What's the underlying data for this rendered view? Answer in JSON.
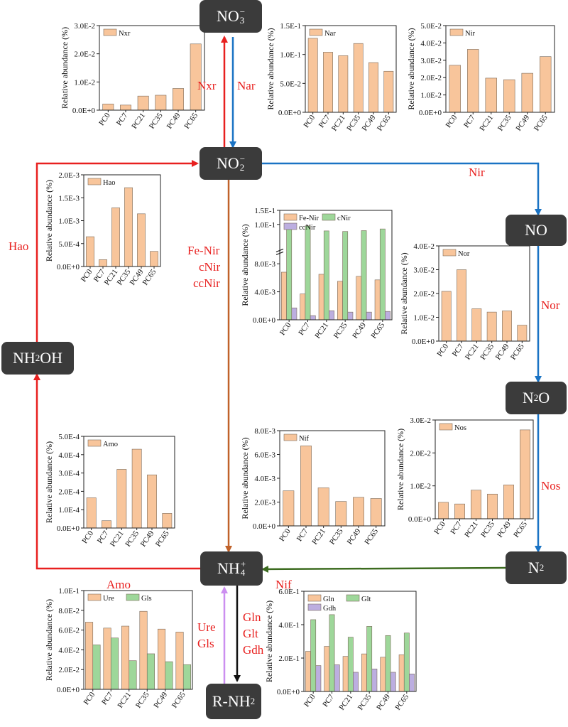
{
  "colors": {
    "red": "#e8201f",
    "blue": "#1a73c4",
    "brown": "#c0622a",
    "green": "#3c6b1f",
    "violet": "#cc8ff0",
    "black": "#111111",
    "orange": "#f8c59b",
    "gfill": "#9ed79a",
    "pfill": "#bcaee0"
  },
  "nodes": {
    "no3": {
      "base": "NO",
      "sub": "3",
      "sup": "−"
    },
    "no2": {
      "base": "NO",
      "sub": "2",
      "sup": "−"
    },
    "no": {
      "base": "NO",
      "sub": "",
      "sup": ""
    },
    "n2o": {
      "base": "N",
      "sub": "2",
      "sup": "",
      "tail": "O"
    },
    "n2": {
      "base": "N",
      "sub": "2",
      "sup": ""
    },
    "nh2oh": {
      "base": "NH",
      "sub": "2",
      "sup": "",
      "tail": "OH"
    },
    "nh4": {
      "base": "NH",
      "sub": "4",
      "sup": "+"
    },
    "rnh2": {
      "base": "R-NH",
      "sub": "2",
      "sup": ""
    }
  },
  "edge_labels": {
    "nxr": "Nxr",
    "nar": "Nar",
    "nir": "Nir",
    "hao": "Hao",
    "ferenir": "Fe-Nir",
    "cnir": "cNir",
    "ccnir": "ccNir",
    "nor": "Nor",
    "nos": "Nos",
    "amo": "Amo",
    "nif": "Nif",
    "ure": "Ure",
    "gls": "Gls",
    "gln": "Gln",
    "glt": "Glt",
    "gdh": "Gdh"
  },
  "chart_data": [
    {
      "id": "nxr",
      "type": "bar",
      "ylabel": "Relative abundance (%)",
      "categories": [
        "PC0",
        "PC7",
        "PC21",
        "PC35",
        "PC49",
        "PC65"
      ],
      "ylim": [
        0,
        0.03
      ],
      "yticks": [
        0,
        0.01,
        0.02,
        0.03
      ],
      "yticklabels": [
        "0.0E+0",
        "1.0E-2",
        "2.0E-2",
        "3.0E-2"
      ],
      "series": [
        {
          "name": "Nxr",
          "values": [
            0.0022,
            0.0018,
            0.005,
            0.0053,
            0.0077,
            0.0235
          ]
        }
      ]
    },
    {
      "id": "nar",
      "type": "bar",
      "ylabel": "Relative abundance (%)",
      "categories": [
        "PC0",
        "PC7",
        "PC21",
        "PC35",
        "PC49",
        "PC65"
      ],
      "ylim": [
        0,
        0.15
      ],
      "yticks": [
        0,
        0.05,
        0.1,
        0.15
      ],
      "yticklabels": [
        "0.0E+0",
        "5.0E-2",
        "1.0E-1",
        "1.5E-1"
      ],
      "series": [
        {
          "name": "Nar",
          "values": [
            0.128,
            0.104,
            0.098,
            0.119,
            0.086,
            0.071
          ]
        }
      ]
    },
    {
      "id": "nir",
      "type": "bar",
      "ylabel": "Relative abundance (%)",
      "categories": [
        "PC0",
        "PC7",
        "PC21",
        "PC35",
        "PC49",
        "PC65"
      ],
      "ylim": [
        0,
        0.05
      ],
      "yticks": [
        0,
        0.01,
        0.02,
        0.03,
        0.04,
        0.05
      ],
      "yticklabels": [
        "0.0E+0",
        "1.0E-2",
        "2.0E-2",
        "3.0E-2",
        "4.0E-2",
        "5.0E-2"
      ],
      "series": [
        {
          "name": "Nir",
          "values": [
            0.0271,
            0.0363,
            0.0197,
            0.0188,
            0.0225,
            0.0321
          ]
        }
      ]
    },
    {
      "id": "hao",
      "type": "bar",
      "ylabel": "Relative abundance (%)",
      "categories": [
        "PC0",
        "PC7",
        "PC21",
        "PC35",
        "PC49",
        "PC65"
      ],
      "ylim": [
        0,
        0.002
      ],
      "yticks": [
        0,
        0.0005,
        0.001,
        0.0015,
        0.002
      ],
      "yticklabels": [
        "0.0E+0",
        "5.0E-4",
        "1.0E-3",
        "1.5E-3",
        "2.0E-3"
      ],
      "series": [
        {
          "name": "Hao",
          "values": [
            0.00065,
            0.00015,
            0.00128,
            0.00172,
            0.00115,
            0.00033
          ]
        }
      ]
    },
    {
      "id": "nirtypes",
      "type": "bar",
      "broken_axis": true,
      "ylabel": "Relative abundance (%)",
      "categories": [
        "PC0",
        "PC7",
        "PC21",
        "PC35",
        "PC49",
        "PC65"
      ],
      "ylim": [
        0,
        0.15
      ],
      "yticks": [
        0,
        0.004,
        0.008,
        0.1,
        0.15
      ],
      "yticklabels": [
        "0.0E+0",
        "4.0E-3",
        "8.0E-3",
        "1.0E-1",
        "1.5E-1"
      ],
      "series": [
        {
          "name": "Fe-Nir",
          "values": [
            0.0068,
            0.0037,
            0.0065,
            0.0055,
            0.0062,
            0.0057
          ]
        },
        {
          "name": "cNir",
          "values": [
            0.084,
            0.095,
            0.077,
            0.075,
            0.078,
            0.084
          ]
        },
        {
          "name": "ccNir",
          "values": [
            0.0017,
            0.0006,
            0.0013,
            0.0011,
            0.0011,
            0.0012
          ]
        }
      ]
    },
    {
      "id": "nor",
      "type": "bar",
      "ylabel": "Relative abundance (%)",
      "categories": [
        "PC0",
        "PC7",
        "PC21",
        "PC35",
        "PC49",
        "PC65"
      ],
      "ylim": [
        0,
        0.04
      ],
      "yticks": [
        0,
        0.01,
        0.02,
        0.03,
        0.04
      ],
      "yticklabels": [
        "0.0E+0",
        "1.0E-2",
        "2.0E-2",
        "3.0E-2",
        "4.0E-2"
      ],
      "series": [
        {
          "name": "Nor",
          "values": [
            0.0209,
            0.03,
            0.0136,
            0.0122,
            0.0127,
            0.0067
          ]
        }
      ]
    },
    {
      "id": "amo",
      "type": "bar",
      "ylabel": "Relative abundance (%)",
      "categories": [
        "PC0",
        "PC7",
        "PC21",
        "PC35",
        "PC49",
        "PC65"
      ],
      "ylim": [
        0,
        0.0005
      ],
      "yticks": [
        0,
        0.0001,
        0.0002,
        0.0003,
        0.0004,
        0.0005
      ],
      "yticklabels": [
        "0.0E+0",
        "1.0E-4",
        "2.0E-4",
        "3.0E-4",
        "4.0E-4",
        "5.0E-4"
      ],
      "series": [
        {
          "name": "Amo",
          "values": [
            0.000165,
            4e-05,
            0.00032,
            0.00043,
            0.00029,
            8e-05
          ]
        }
      ]
    },
    {
      "id": "nif",
      "type": "bar",
      "ylabel": "Relative abundance (%)",
      "categories": [
        "PC0",
        "PC7",
        "PC21",
        "PC35",
        "PC49",
        "PC65"
      ],
      "ylim": [
        0,
        0.008
      ],
      "yticks": [
        0,
        0.002,
        0.004,
        0.006,
        0.008
      ],
      "yticklabels": [
        "0.0E+0",
        "2.0E-3",
        "4.0E-3",
        "6.0E-3",
        "8.0E-3"
      ],
      "series": [
        {
          "name": "Nif",
          "values": [
            0.00295,
            0.00672,
            0.0032,
            0.00205,
            0.0024,
            0.0023
          ]
        }
      ]
    },
    {
      "id": "nos",
      "type": "bar",
      "ylabel": "Relative abundance (%)",
      "categories": [
        "PC0",
        "PC7",
        "PC21",
        "PC35",
        "PC49",
        "PC65"
      ],
      "ylim": [
        0,
        0.03
      ],
      "yticks": [
        0,
        0.01,
        0.02,
        0.03
      ],
      "yticklabels": [
        "0.0E+0",
        "1.0E-2",
        "2.0E-2",
        "3.0E-2"
      ],
      "series": [
        {
          "name": "Nos",
          "values": [
            0.005,
            0.0045,
            0.0087,
            0.0075,
            0.0103,
            0.027
          ]
        }
      ]
    },
    {
      "id": "ure",
      "type": "bar",
      "ylabel": "Relative abundance (%)",
      "categories": [
        "PC0",
        "PC7",
        "PC21",
        "PC35",
        "PC49",
        "PC65"
      ],
      "ylim": [
        0,
        0.1
      ],
      "yticks": [
        0,
        0.02,
        0.04,
        0.06,
        0.08,
        0.1
      ],
      "yticklabels": [
        "0.0E+0",
        "2.0E-2",
        "4.0E-2",
        "6.0E-2",
        "8.0E-2",
        "1.0E-1"
      ],
      "series": [
        {
          "name": "Ure",
          "values": [
            0.068,
            0.062,
            0.064,
            0.079,
            0.061,
            0.058
          ]
        },
        {
          "name": "Gls",
          "values": [
            0.045,
            0.052,
            0.029,
            0.036,
            0.028,
            0.025
          ]
        }
      ]
    },
    {
      "id": "gln",
      "type": "bar",
      "ylabel": "Relative abundance (%)",
      "categories": [
        "PC0",
        "PC7",
        "PC21",
        "PC35",
        "PC49",
        "PC65"
      ],
      "ylim": [
        0,
        0.6
      ],
      "yticks": [
        0,
        0.2,
        0.4,
        0.6
      ],
      "yticklabels": [
        "0.0E+0",
        "2.0E-1",
        "4.0E-1",
        "6.0E-1"
      ],
      "series": [
        {
          "name": "Gln",
          "values": [
            0.24,
            0.27,
            0.21,
            0.225,
            0.205,
            0.22
          ]
        },
        {
          "name": "Glt",
          "values": [
            0.43,
            0.46,
            0.325,
            0.39,
            0.335,
            0.35
          ]
        },
        {
          "name": "Gdh",
          "values": [
            0.155,
            0.16,
            0.115,
            0.135,
            0.115,
            0.105
          ]
        }
      ]
    }
  ]
}
